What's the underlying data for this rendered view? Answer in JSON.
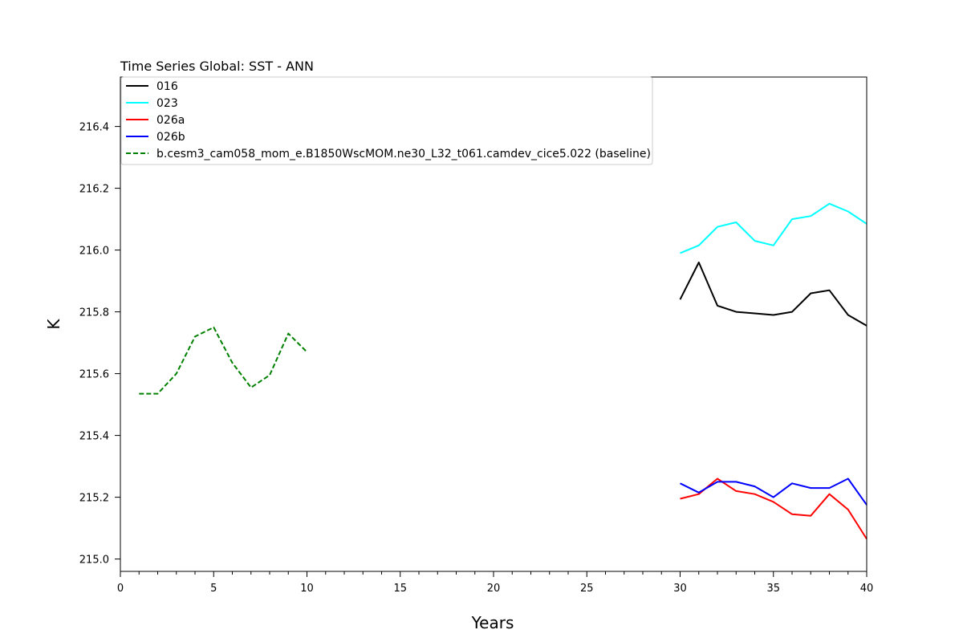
{
  "chart_data": {
    "type": "line",
    "title": "Time Series Global: SST - ANN",
    "xlabel": "Years",
    "ylabel": "K",
    "xlim": [
      0,
      40
    ],
    "ylim": [
      214.96,
      216.56
    ],
    "xticks": [
      0,
      5,
      10,
      15,
      20,
      25,
      30,
      35,
      40
    ],
    "yticks": [
      215.0,
      215.2,
      215.4,
      215.6,
      215.8,
      216.0,
      216.2,
      216.4
    ],
    "grid": false,
    "legend_position": "top-left",
    "series": [
      {
        "name": "016",
        "color": "#000000",
        "style": "solid",
        "x": [
          30,
          31,
          32,
          33,
          34,
          35,
          36,
          37,
          38,
          39,
          40
        ],
        "y": [
          215.84,
          215.96,
          215.82,
          215.8,
          215.795,
          215.79,
          215.8,
          215.86,
          215.87,
          215.79,
          215.755
        ]
      },
      {
        "name": "023",
        "color": "#00ffff",
        "style": "solid",
        "x": [
          30,
          31,
          32,
          33,
          34,
          35,
          36,
          37,
          38,
          39,
          40
        ],
        "y": [
          215.99,
          216.015,
          216.075,
          216.09,
          216.03,
          216.015,
          216.1,
          216.11,
          216.15,
          216.125,
          216.085
        ]
      },
      {
        "name": "026a",
        "color": "#ff0000",
        "style": "solid",
        "x": [
          30,
          31,
          32,
          33,
          34,
          35,
          36,
          37,
          38,
          39,
          40
        ],
        "y": [
          215.195,
          215.21,
          215.26,
          215.22,
          215.21,
          215.185,
          215.145,
          215.14,
          215.21,
          215.16,
          215.065
        ]
      },
      {
        "name": "026b",
        "color": "#0000ff",
        "style": "solid",
        "x": [
          30,
          31,
          32,
          33,
          34,
          35,
          36,
          37,
          38,
          39,
          40
        ],
        "y": [
          215.245,
          215.215,
          215.25,
          215.25,
          215.235,
          215.2,
          215.245,
          215.23,
          215.23,
          215.26,
          215.175
        ]
      },
      {
        "name": "b.cesm3_cam058_mom_e.B1850WscMOM.ne30_L32_t061.camdev_cice5.022 (baseline)",
        "color": "#008000",
        "style": "dashed",
        "x": [
          1,
          2,
          3,
          4,
          5,
          6,
          7,
          8,
          9,
          10
        ],
        "y": [
          215.535,
          215.535,
          215.6,
          215.72,
          215.75,
          215.635,
          215.555,
          215.595,
          215.73,
          215.67
        ]
      }
    ]
  }
}
